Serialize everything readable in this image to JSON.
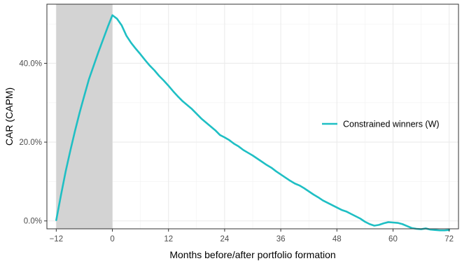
{
  "chart_data": {
    "type": "line",
    "xlabel": "Months before/after portfolio formation",
    "ylabel": "CAR (CAPM)",
    "xlim": [
      -14,
      74
    ],
    "ylim": [
      -2,
      55
    ],
    "x_ticks": [
      {
        "value": -12,
        "label": "−12"
      },
      {
        "value": 0,
        "label": "0"
      },
      {
        "value": 12,
        "label": "12"
      },
      {
        "value": 24,
        "label": "24"
      },
      {
        "value": 36,
        "label": "36"
      },
      {
        "value": 48,
        "label": "48"
      },
      {
        "value": 60,
        "label": "60"
      },
      {
        "value": 72,
        "label": "72"
      }
    ],
    "y_ticks": [
      {
        "value": 0,
        "label": "0.0%"
      },
      {
        "value": 20,
        "label": "20.0%"
      },
      {
        "value": 40,
        "label": "40.0%"
      }
    ],
    "shaded_region": {
      "x_start": -12,
      "x_end": 0,
      "color": "#d3d3d3"
    },
    "grid": true,
    "legend_position": "right",
    "series": [
      {
        "name": "Constrained winners (W)",
        "color": "#1fbfc4",
        "x": [
          -12,
          -11,
          -10,
          -9,
          -8,
          -7,
          -6,
          -5,
          -4,
          -3,
          -2,
          -1,
          0,
          1,
          2,
          3,
          4,
          5,
          6,
          7,
          8,
          9,
          10,
          11,
          12,
          13,
          14,
          15,
          16,
          17,
          18,
          19,
          20,
          21,
          22,
          23,
          24,
          25,
          26,
          27,
          28,
          29,
          30,
          31,
          32,
          33,
          34,
          35,
          36,
          37,
          38,
          39,
          40,
          41,
          42,
          43,
          44,
          45,
          46,
          47,
          48,
          49,
          50,
          51,
          52,
          53,
          54,
          55,
          56,
          57,
          58,
          59,
          60,
          61,
          62,
          63,
          64,
          65,
          66,
          67,
          68,
          69,
          70,
          71,
          72
        ],
        "values": [
          0.2,
          6.5,
          12.5,
          17.8,
          22.8,
          27.5,
          31.8,
          36.0,
          39.4,
          42.8,
          46.0,
          49.2,
          52.2,
          51.3,
          49.6,
          47.0,
          45.2,
          43.7,
          42.3,
          40.8,
          39.4,
          38.2,
          36.8,
          35.6,
          34.3,
          32.9,
          31.6,
          30.4,
          29.4,
          28.4,
          27.2,
          26.0,
          25.0,
          24.0,
          23.0,
          21.8,
          21.2,
          20.5,
          19.6,
          18.9,
          18.0,
          17.3,
          16.6,
          15.8,
          15.0,
          14.2,
          13.5,
          12.6,
          11.8,
          11.0,
          10.2,
          9.5,
          9.0,
          8.3,
          7.5,
          6.7,
          6.0,
          5.2,
          4.6,
          4.0,
          3.4,
          2.8,
          2.4,
          1.8,
          1.2,
          0.6,
          -0.2,
          -0.8,
          -1.2,
          -1.0,
          -0.6,
          -0.3,
          -0.4,
          -0.5,
          -0.8,
          -1.3,
          -1.8,
          -2.0,
          -2.1,
          -1.9,
          -2.2,
          -2.3,
          -2.4,
          -2.4,
          -2.3
        ]
      }
    ]
  }
}
